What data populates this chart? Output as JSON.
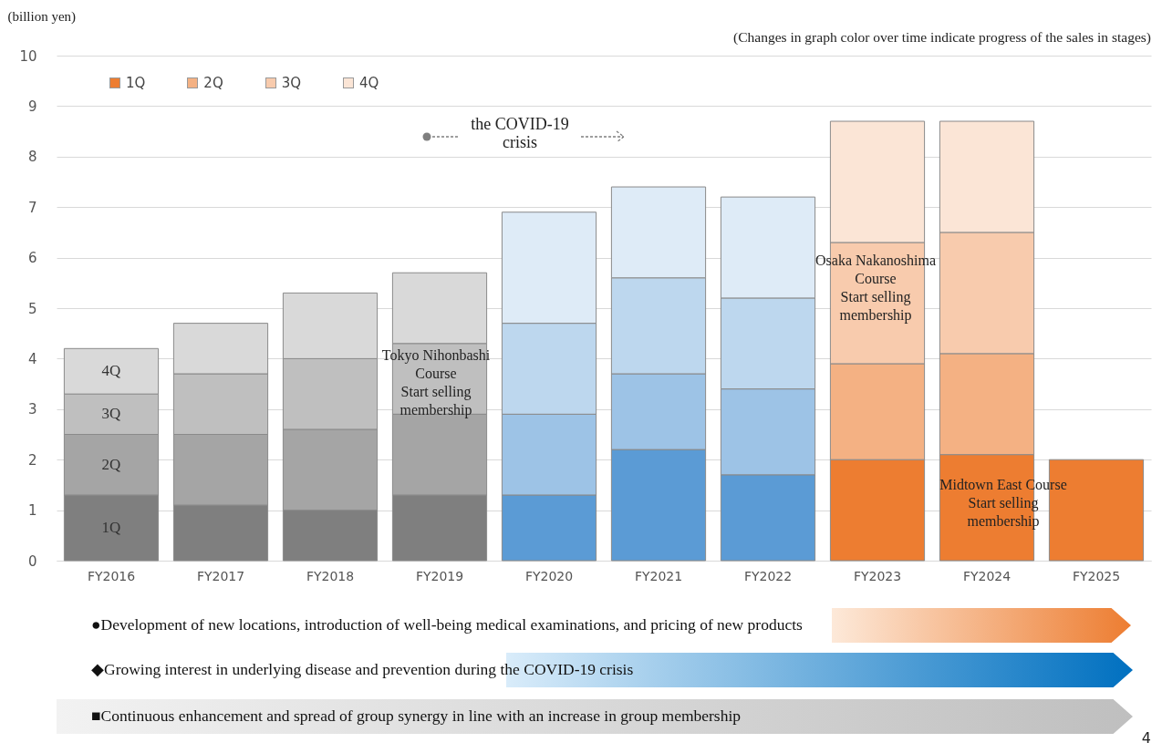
{
  "chart_data": {
    "type": "bar",
    "stacked": true,
    "subtitle": "(Changes in graph color over time indicate progress of the sales in stages)",
    "ylabel": "(billion yen)",
    "categories": [
      "FY2016",
      "FY2017",
      "FY2018",
      "FY2019",
      "FY2020",
      "FY2021",
      "FY2022",
      "FY2023",
      "FY2024",
      "FY2025"
    ],
    "series": [
      {
        "name": "1Q",
        "color": "#ed7d31",
        "colors": [
          "#7f7f7f",
          "#7f7f7f",
          "#7f7f7f",
          "#7f7f7f",
          "#5b9bd5",
          "#5b9bd5",
          "#5b9bd5",
          "#ed7d31",
          "#ed7d31",
          "#ed7d31"
        ],
        "values": [
          1.3,
          1.1,
          1.0,
          1.3,
          1.3,
          2.2,
          1.7,
          2.0,
          2.1,
          2.0
        ]
      },
      {
        "name": "2Q",
        "color": "#f4b183",
        "colors": [
          "#a5a5a5",
          "#a5a5a5",
          "#a5a5a5",
          "#a5a5a5",
          "#9dc3e6",
          "#9dc3e6",
          "#9dc3e6",
          "#f4b183",
          "#f4b183",
          null
        ],
        "values": [
          1.2,
          1.4,
          1.6,
          1.6,
          1.6,
          1.5,
          1.7,
          1.9,
          2.0,
          null
        ]
      },
      {
        "name": "3Q",
        "color": "#f8cbad",
        "colors": [
          "#bfbfbf",
          "#bfbfbf",
          "#bfbfbf",
          "#bfbfbf",
          "#bdd7ee",
          "#bdd7ee",
          "#bdd7ee",
          "#f8cbad",
          "#f8cbad",
          null
        ],
        "values": [
          0.8,
          1.2,
          1.4,
          1.4,
          1.8,
          1.9,
          1.8,
          2.4,
          2.4,
          null
        ]
      },
      {
        "name": "4Q",
        "color": "#fbe5d6",
        "colors": [
          "#d9d9d9",
          "#d9d9d9",
          "#d9d9d9",
          "#d9d9d9",
          "#deebf7",
          "#deebf7",
          "#deebf7",
          "#fbe5d6",
          "#fbe5d6",
          null
        ],
        "values": [
          0.9,
          1.0,
          1.3,
          1.4,
          2.2,
          1.8,
          2.0,
          2.4,
          2.2,
          null
        ]
      }
    ],
    "ylim": [
      0,
      10
    ],
    "yticks": [
      0,
      1,
      2,
      3,
      4,
      5,
      6,
      7,
      8,
      9,
      10
    ],
    "grid": "y",
    "legend": "top left",
    "annotations": [
      "the COVID-19\ncrisis",
      "Tokyo Nihonbashi\nCourse\nStart selling\nmembership",
      "Osaka Nakanoshima\nCourse\nStart selling\nmembership",
      "Midtown East Course\nStart selling\nmembership",
      "●Development of new locations, introduction of well-being medical examinations, and pricing of new products",
      "◆Growing interest in underlying disease and prevention during the COVID-19 crisis",
      "■Continuous enhancement and spread of group synergy in line with an increase in group membership",
      "4"
    ]
  }
}
